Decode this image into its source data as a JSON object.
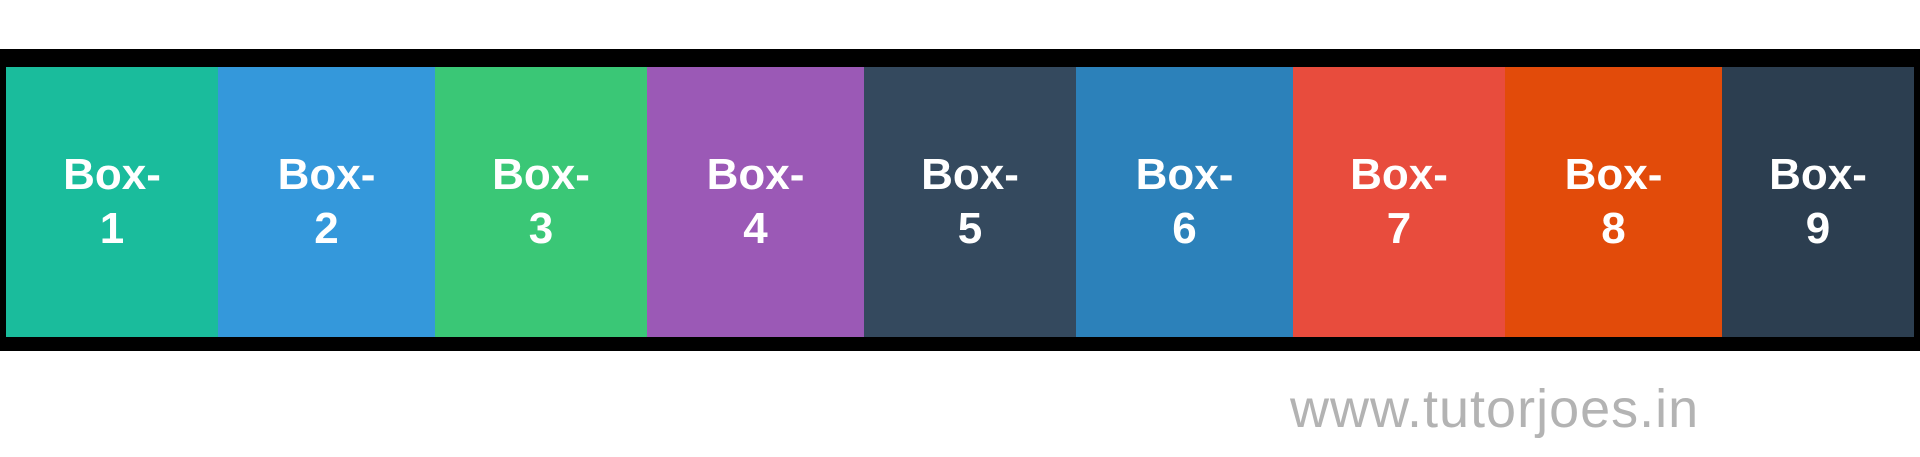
{
  "boxes": [
    {
      "label": "Box-1",
      "color": "#1abc9c"
    },
    {
      "label": "Box-2",
      "color": "#3498db"
    },
    {
      "label": "Box-3",
      "color": "#3ac776"
    },
    {
      "label": "Box-4",
      "color": "#9b59b6"
    },
    {
      "label": "Box-5",
      "color": "#34495e"
    },
    {
      "label": "Box-6",
      "color": "#2c81ba"
    },
    {
      "label": "Box-7",
      "color": "#e84c3d"
    },
    {
      "label": "Box-8",
      "color": "#e24b0a"
    },
    {
      "label": "Box-9",
      "color": "#2c3e50"
    }
  ],
  "watermark": "www.tutorjoes.in",
  "container_border_color": "#000000"
}
